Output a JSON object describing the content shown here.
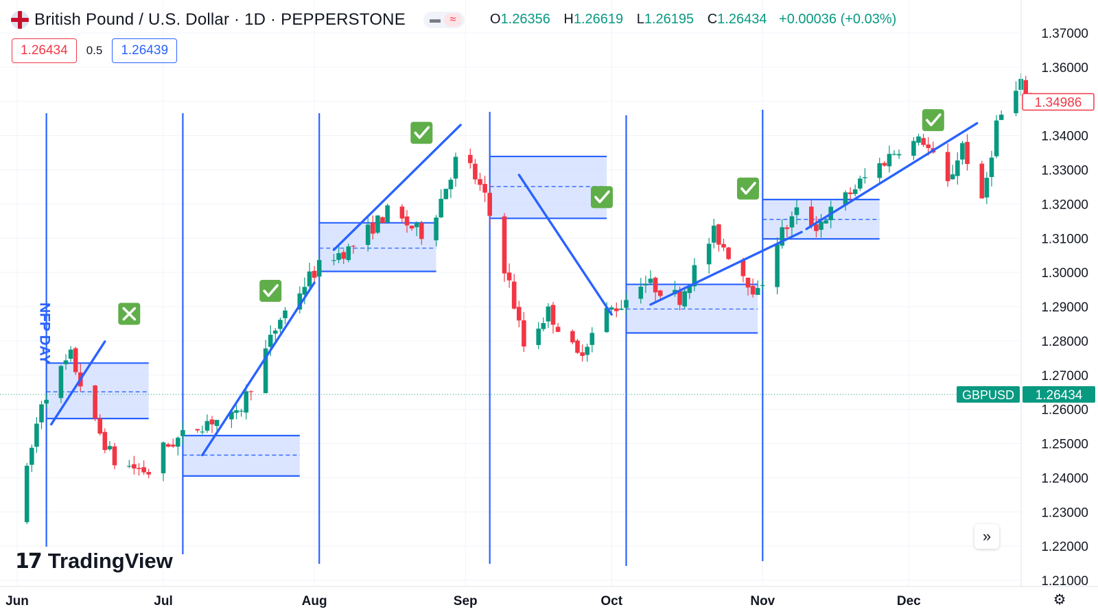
{
  "header": {
    "symbol_title": "British Pound / U.S. Dollar · 1D · PEPPERSTONE",
    "flag_icon": "gb-us-flag-icon",
    "pill_icons": [
      "minimize-icon",
      "wave-icon"
    ],
    "ohlc": {
      "o_label": "O",
      "o_value": "1.26356",
      "h_label": "H",
      "h_value": "1.26619",
      "l_label": "L",
      "l_value": "1.26195",
      "c_label": "C",
      "c_value": "1.26434",
      "change": "+0.00036 (+0.03%)"
    },
    "sell_price": "1.26434",
    "spread": "0.5",
    "buy_price": "1.26439"
  },
  "logo": {
    "text": "TradingView",
    "mark": "17"
  },
  "colors": {
    "up": "#089981",
    "down": "#f23645",
    "drawing": "#2962ff",
    "zone_fill": "#cfdcff",
    "ticker_bg": "#089981"
  },
  "chart_data": {
    "type": "candlestick",
    "symbol": "GBPUSD",
    "interval": "1D",
    "x_tick_labels": [
      "Jun",
      "Jul",
      "Aug",
      "Sep",
      "Oct",
      "Nov",
      "Dec"
    ],
    "y_tick_labels": [
      "1.37000",
      "1.36000",
      "1.35000",
      "1.34000",
      "1.33000",
      "1.32000",
      "1.31000",
      "1.30000",
      "1.29000",
      "1.28000",
      "1.27000",
      "1.26000",
      "1.25000",
      "1.24000",
      "1.23000",
      "1.22000",
      "1.21000"
    ],
    "ylim": [
      1.21,
      1.37
    ],
    "current_price_label": "1.26434",
    "current_ticker_label": "GBPUSD",
    "last_price_label": "1.34986",
    "current_price": 1.26434,
    "last_price": 1.34986,
    "grid": true,
    "month_path": [
      [
        "2024-06-01",
        1.2276
      ],
      [
        "2024-06-06",
        1.2626
      ],
      [
        "2024-06-12",
        1.2756
      ],
      [
        "2024-06-17",
        1.2556
      ],
      [
        "2024-06-21",
        1.2446
      ],
      [
        "2024-06-28",
        1.2416
      ],
      [
        "2024-07-01",
        1.2486
      ],
      [
        "2024-07-10",
        1.2566
      ],
      [
        "2024-07-16",
        1.2576
      ],
      [
        "2024-07-25",
        1.2866
      ],
      [
        "2024-07-31",
        1.2986
      ],
      [
        "2024-08-04",
        1.3046
      ],
      [
        "2024-08-08",
        1.3066
      ],
      [
        "2024-08-16",
        1.3176
      ],
      [
        "2024-08-24",
        1.3106
      ],
      [
        "2024-08-30",
        1.3326
      ],
      [
        "2024-09-01",
        1.3336
      ],
      [
        "2024-09-05",
        1.3216
      ],
      [
        "2024-09-10",
        1.2966
      ],
      [
        "2024-09-13",
        1.2786
      ],
      [
        "2024-09-18",
        1.2886
      ],
      [
        "2024-09-24",
        1.2756
      ],
      [
        "2024-09-30",
        1.2886
      ],
      [
        "2024-10-03",
        1.2906
      ],
      [
        "2024-10-07",
        1.2976
      ],
      [
        "2024-10-15",
        1.2926
      ],
      [
        "2024-10-22",
        1.3116
      ],
      [
        "2024-10-28",
        1.2996
      ],
      [
        "2024-10-31",
        1.2936
      ],
      [
        "2024-11-04",
        1.3096
      ],
      [
        "2024-11-08",
        1.3176
      ],
      [
        "2024-11-12",
        1.3136
      ],
      [
        "2024-11-22",
        1.3276
      ],
      [
        "2024-11-29",
        1.3366
      ],
      [
        "2024-12-04",
        1.3386
      ],
      [
        "2024-12-09",
        1.3256
      ],
      [
        "2024-12-12",
        1.3376
      ],
      [
        "2024-12-16",
        1.3196
      ],
      [
        "2024-12-19",
        1.3436
      ],
      [
        "2024-12-24",
        1.3546
      ],
      [
        "2024-12-26",
        1.3496
      ]
    ],
    "vertical_lines": [
      "2024-06-07",
      "2024-07-05",
      "2024-08-02",
      "2024-09-06",
      "2024-10-04",
      "2024-11-01"
    ],
    "vertical_label": "NFP DAY",
    "zones": [
      {
        "start": "2024-06-07",
        "end": "2024-06-28",
        "top": 1.2735,
        "mid": 1.2651,
        "bottom": 1.2573
      },
      {
        "start": "2024-07-05",
        "end": "2024-07-29",
        "top": 1.2523,
        "mid": 1.2466,
        "bottom": 1.2405
      },
      {
        "start": "2024-08-02",
        "end": "2024-08-26",
        "top": 1.3145,
        "mid": 1.3071,
        "bottom": 1.3003
      },
      {
        "start": "2024-09-06",
        "end": "2024-09-30",
        "top": 1.3339,
        "mid": 1.3251,
        "bottom": 1.3158
      },
      {
        "start": "2024-10-04",
        "end": "2024-10-31",
        "top": 1.2965,
        "mid": 1.2893,
        "bottom": 1.2823
      },
      {
        "start": "2024-11-01",
        "end": "2024-11-25",
        "top": 1.3213,
        "mid": 1.3155,
        "bottom": 1.3098
      }
    ],
    "trend_lines": [
      [
        [
          "2024-06-08",
          1.2556
        ],
        [
          "2024-06-19",
          1.2798
        ]
      ],
      [
        [
          "2024-07-09",
          1.2466
        ],
        [
          "2024-08-01",
          1.297
        ]
      ],
      [
        [
          "2024-08-05",
          1.3066
        ],
        [
          "2024-08-31",
          1.3431
        ]
      ],
      [
        [
          "2024-09-12",
          1.3285
        ],
        [
          "2024-10-01",
          1.2877
        ]
      ],
      [
        [
          "2024-10-09",
          1.2906
        ],
        [
          "2024-11-09",
          1.3118
        ]
      ],
      [
        [
          "2024-11-10",
          1.3127
        ],
        [
          "2024-12-15",
          1.3436
        ]
      ]
    ],
    "markers": [
      {
        "date": "2024-06-24",
        "price": 1.2879,
        "kind": "fail",
        "icon": "cross-box-icon"
      },
      {
        "date": "2024-07-23",
        "price": 1.2946,
        "kind": "success",
        "icon": "check-box-icon"
      },
      {
        "date": "2024-08-23",
        "price": 1.3408,
        "kind": "success",
        "icon": "check-box-icon"
      },
      {
        "date": "2024-09-29",
        "price": 1.322,
        "kind": "success",
        "icon": "check-box-icon"
      },
      {
        "date": "2024-10-29",
        "price": 1.3245,
        "kind": "success",
        "icon": "check-box-icon"
      },
      {
        "date": "2024-12-06",
        "price": 1.3445,
        "kind": "success",
        "icon": "check-box-icon"
      }
    ]
  }
}
